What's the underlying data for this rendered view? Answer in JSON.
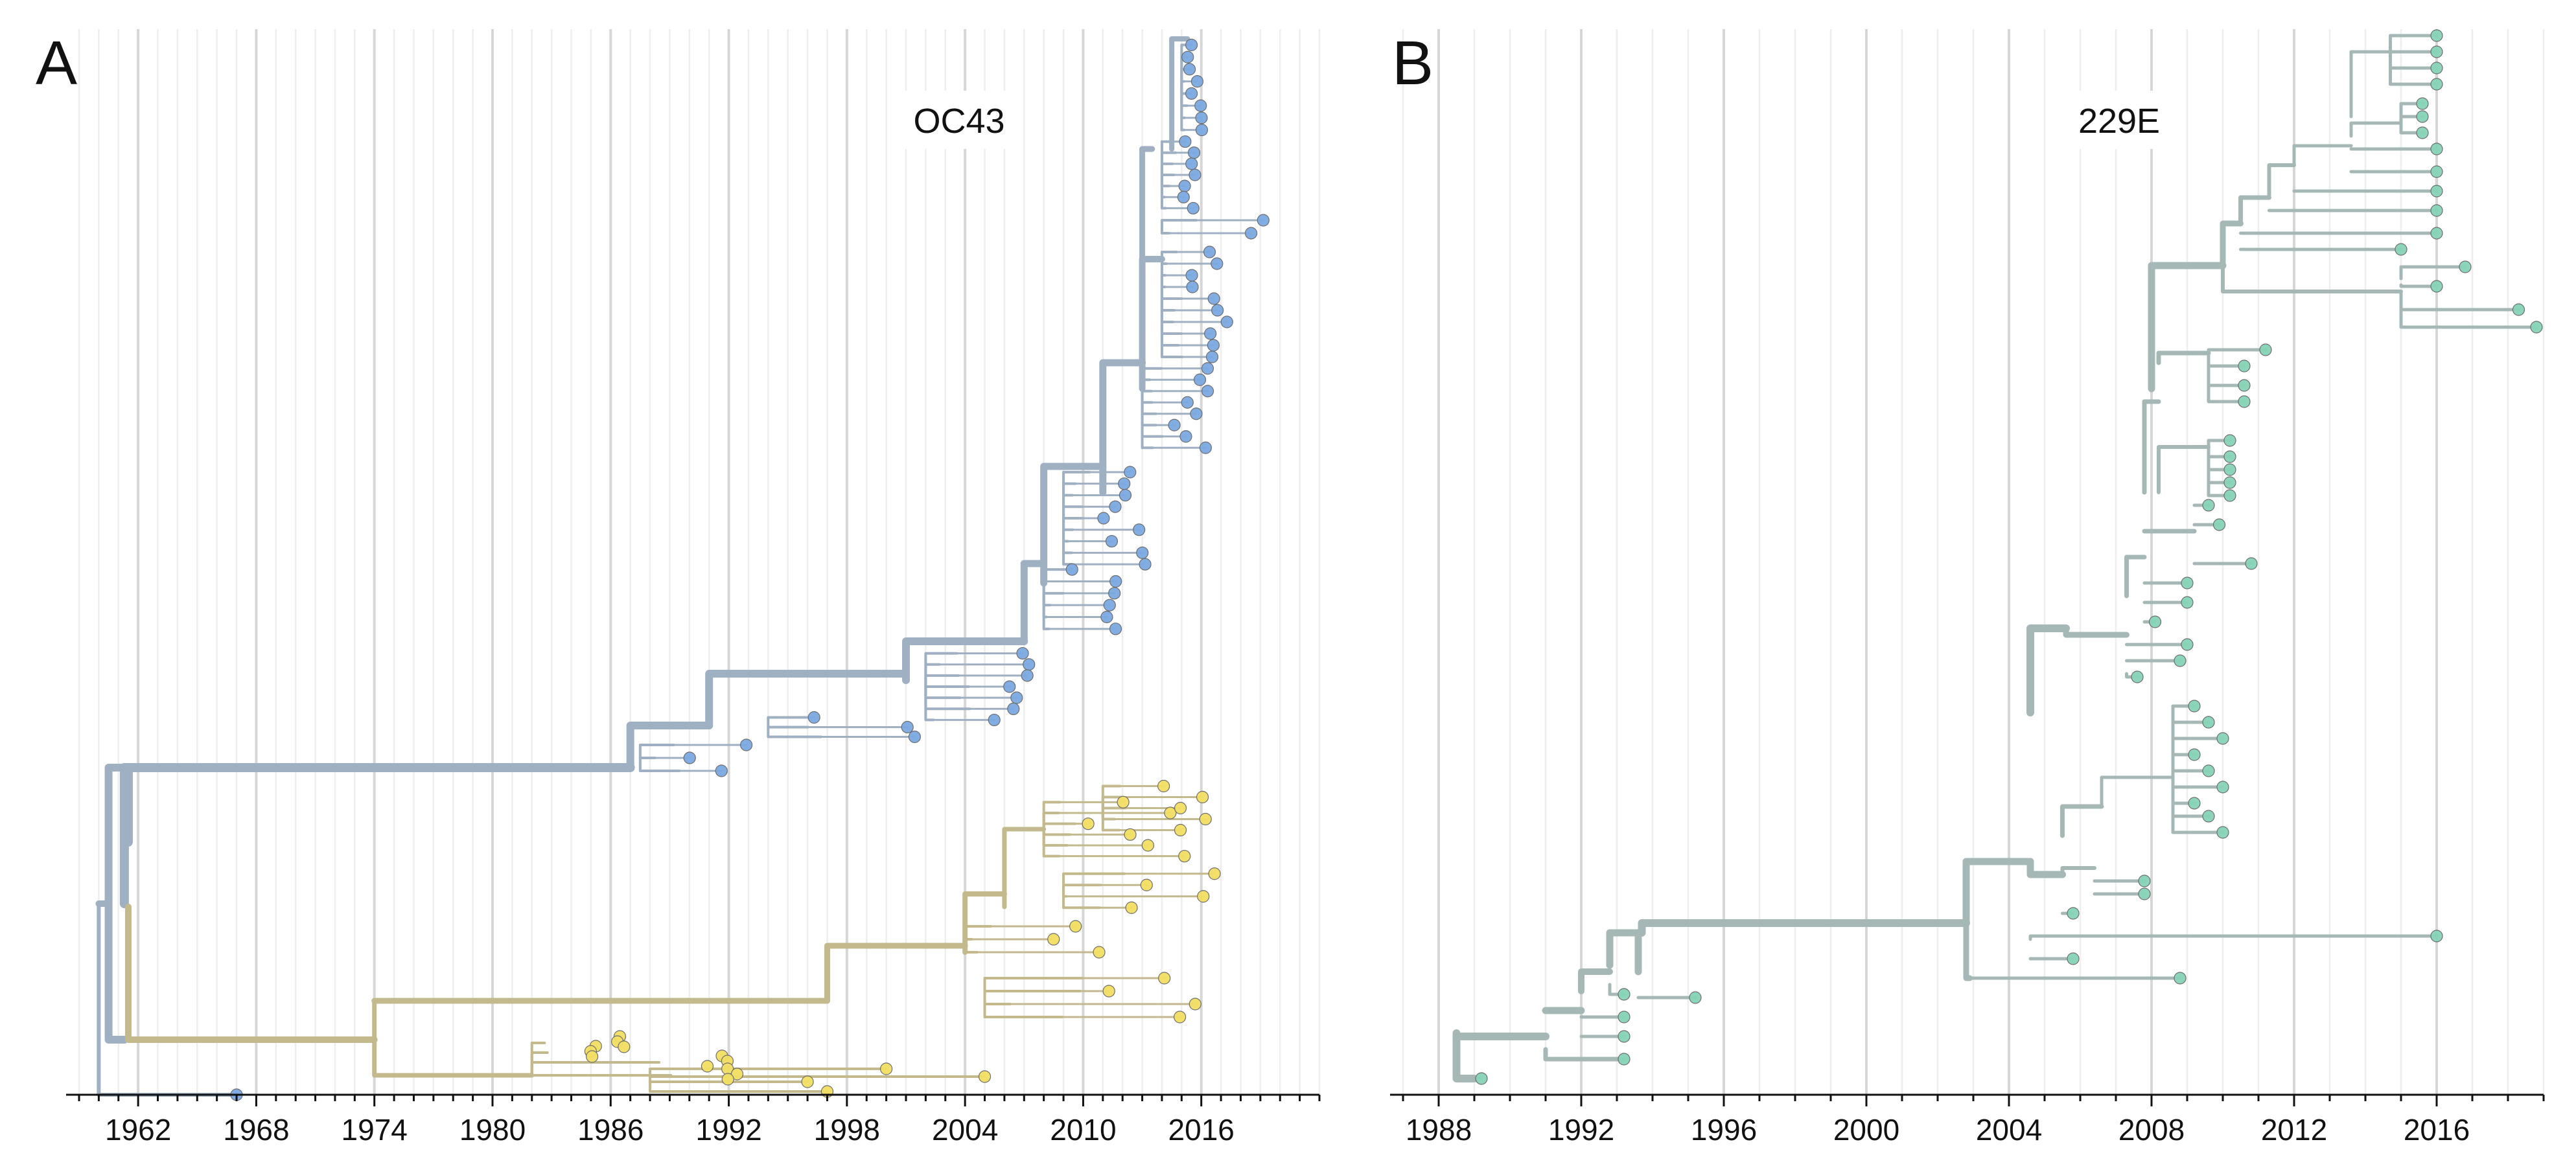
{
  "panels": [
    {
      "id": "A",
      "letter": "A",
      "label": "OC43",
      "x_ticks": [
        "1962",
        "1968",
        "1974",
        "1980",
        "1986",
        "1992",
        "1998",
        "2004",
        "2010",
        "2016"
      ],
      "x_range": [
        1959,
        2022
      ],
      "colors": {
        "branch_main": "#9fb0c3",
        "tip_main": "#7aa9e0",
        "branch_sub": "#c3b98c",
        "tip_sub": "#f2de63"
      }
    },
    {
      "id": "B",
      "letter": "B",
      "label": "229E",
      "x_ticks": [
        "1988",
        "1992",
        "1996",
        "2000",
        "2004",
        "2008",
        "2012",
        "2016"
      ],
      "x_range": [
        1987,
        2019
      ],
      "colors": {
        "branch_main": "#a5b8b5",
        "tip_main": "#86d3b6"
      }
    }
  ]
}
